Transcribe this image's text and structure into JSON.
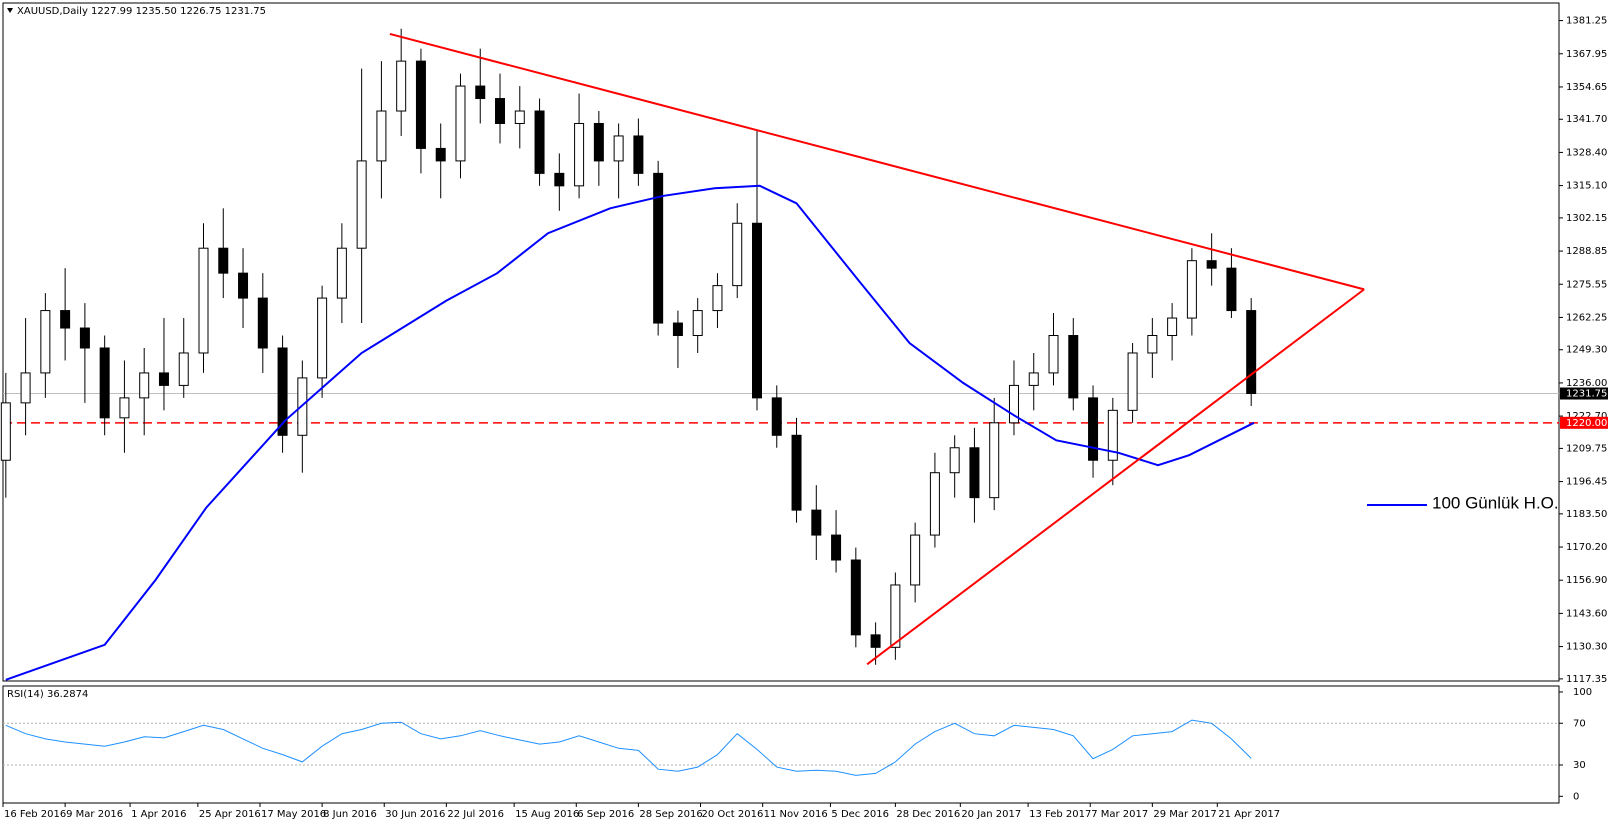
{
  "chart_data": {
    "type": "candlestick",
    "title": "XAUUSD,Daily  1227.99 1235.50 1226.75 1231.75",
    "x": [
      "2016-02-17",
      "2016-02-24",
      "2016-03-02",
      "2016-03-09",
      "2016-03-16",
      "2016-03-23",
      "2016-03-30",
      "2016-04-06",
      "2016-04-13",
      "2016-04-20",
      "2016-04-27",
      "2016-05-04",
      "2016-05-11",
      "2016-05-18",
      "2016-05-25",
      "2016-06-01",
      "2016-06-08",
      "2016-06-15",
      "2016-06-22",
      "2016-06-29",
      "2016-07-06",
      "2016-07-13",
      "2016-07-20",
      "2016-07-27",
      "2016-08-03",
      "2016-08-10",
      "2016-08-17",
      "2016-08-24",
      "2016-08-31",
      "2016-09-07",
      "2016-09-14",
      "2016-09-21",
      "2016-09-28",
      "2016-10-05",
      "2016-10-12",
      "2016-10-19",
      "2016-10-26",
      "2016-11-02",
      "2016-11-09",
      "2016-11-16",
      "2016-11-23",
      "2016-11-30",
      "2016-12-07",
      "2016-12-14",
      "2016-12-21",
      "2016-12-28",
      "2017-01-04",
      "2017-01-11",
      "2017-01-18",
      "2017-01-25",
      "2017-02-01",
      "2017-02-08",
      "2017-02-15",
      "2017-02-22",
      "2017-03-01",
      "2017-03-08",
      "2017-03-15",
      "2017-03-22",
      "2017-03-29",
      "2017-04-05",
      "2017-04-12",
      "2017-04-19",
      "2017-04-26",
      "2017-05-03"
    ],
    "open": [
      1205,
      1228,
      1240,
      1265,
      1258,
      1250,
      1222,
      1230,
      1240,
      1235,
      1248,
      1290,
      1280,
      1270,
      1250,
      1215,
      1238,
      1270,
      1290,
      1325,
      1345,
      1365,
      1330,
      1325,
      1355,
      1350,
      1340,
      1345,
      1320,
      1315,
      1340,
      1325,
      1335,
      1320,
      1260,
      1255,
      1265,
      1275,
      1300,
      1230,
      1215,
      1185,
      1175,
      1165,
      1135,
      1130,
      1155,
      1175,
      1200,
      1210,
      1190,
      1220,
      1235,
      1240,
      1255,
      1230,
      1205,
      1225,
      1248,
      1255,
      1262,
      1285,
      1282,
      1265
    ],
    "high": [
      1240,
      1262,
      1272,
      1282,
      1268,
      1255,
      1245,
      1250,
      1262,
      1262,
      1300,
      1306,
      1290,
      1280,
      1255,
      1245,
      1275,
      1300,
      1362,
      1365,
      1378,
      1370,
      1340,
      1360,
      1370,
      1360,
      1355,
      1350,
      1328,
      1352,
      1345,
      1340,
      1342,
      1325,
      1265,
      1270,
      1280,
      1308,
      1337,
      1235,
      1222,
      1195,
      1185,
      1170,
      1140,
      1160,
      1180,
      1208,
      1215,
      1218,
      1230,
      1245,
      1248,
      1264,
      1262,
      1235,
      1230,
      1252,
      1262,
      1268,
      1290,
      1296,
      1290,
      1270
    ],
    "low": [
      1190,
      1215,
      1230,
      1245,
      1228,
      1215,
      1208,
      1215,
      1225,
      1230,
      1240,
      1270,
      1258,
      1240,
      1208,
      1200,
      1230,
      1260,
      1260,
      1310,
      1335,
      1320,
      1310,
      1318,
      1340,
      1332,
      1330,
      1315,
      1305,
      1310,
      1315,
      1310,
      1315,
      1255,
      1242,
      1248,
      1258,
      1270,
      1225,
      1210,
      1180,
      1165,
      1160,
      1130,
      1123,
      1125,
      1148,
      1170,
      1190,
      1180,
      1185,
      1215,
      1225,
      1235,
      1225,
      1198,
      1195,
      1220,
      1238,
      1245,
      1255,
      1275,
      1262,
      1226.75
    ],
    "close": [
      1228,
      1240,
      1265,
      1258,
      1250,
      1222,
      1230,
      1240,
      1235,
      1248,
      1290,
      1280,
      1270,
      1250,
      1215,
      1238,
      1270,
      1290,
      1325,
      1345,
      1365,
      1330,
      1325,
      1355,
      1350,
      1340,
      1345,
      1320,
      1315,
      1340,
      1325,
      1335,
      1320,
      1260,
      1255,
      1265,
      1275,
      1300,
      1230,
      1215,
      1185,
      1175,
      1165,
      1135,
      1130,
      1155,
      1175,
      1200,
      1210,
      1190,
      1220,
      1235,
      1240,
      1255,
      1230,
      1205,
      1225,
      1248,
      1255,
      1262,
      1285,
      1282,
      1265,
      1231.75
    ],
    "up_color": "#ffffff",
    "down_color": "#000000",
    "xlim": [
      "2016-02-16",
      "2017-08-20"
    ],
    "xticks": [
      {
        "value": "2016-02-16",
        "label": "16 Feb 2016"
      },
      {
        "value": "2016-03-09",
        "label": "9 Mar 2016"
      },
      {
        "value": "2016-04-01",
        "label": "1 Apr 2016"
      },
      {
        "value": "2016-04-25",
        "label": "25 Apr 2016"
      },
      {
        "value": "2016-05-17",
        "label": "17 May 2016"
      },
      {
        "value": "2016-06-08",
        "label": "8 Jun 2016"
      },
      {
        "value": "2016-06-30",
        "label": "30 Jun 2016"
      },
      {
        "value": "2016-07-22",
        "label": "22 Jul 2016"
      },
      {
        "value": "2016-08-15",
        "label": "15 Aug 2016"
      },
      {
        "value": "2016-09-06",
        "label": "6 Sep 2016"
      },
      {
        "value": "2016-09-28",
        "label": "28 Sep 2016"
      },
      {
        "value": "2016-10-20",
        "label": "20 Oct 2016"
      },
      {
        "value": "2016-11-11",
        "label": "11 Nov 2016"
      },
      {
        "value": "2016-12-05",
        "label": "5 Dec 2016"
      },
      {
        "value": "2016-12-28",
        "label": "28 Dec 2016"
      },
      {
        "value": "2017-01-20",
        "label": "20 Jan 2017"
      },
      {
        "value": "2017-02-13",
        "label": "13 Feb 2017"
      },
      {
        "value": "2017-03-07",
        "label": "7 Mar 2017"
      },
      {
        "value": "2017-03-29",
        "label": "29 Mar 2017"
      },
      {
        "value": "2017-04-21",
        "label": "21 Apr 2017"
      }
    ],
    "ylim": [
      1116.5,
      1388.3
    ],
    "yticks": [
      1381.25,
      1367.95,
      1354.65,
      {
        "value": 1341.7,
        "label": "1341.70"
      },
      {
        "value": 1328.4,
        "label": "1328.40"
      },
      {
        "value": 1315.1,
        "label": "1315.10"
      },
      1302.15,
      1288.85,
      1275.55,
      1262.25,
      {
        "value": 1249.3,
        "label": "1249.30"
      },
      {
        "value": 1236,
        "label": "1236.00"
      },
      {
        "value": 1222.7,
        "label": "1222.70"
      },
      1209.75,
      1196.45,
      {
        "value": 1183.5,
        "label": "1183.50"
      },
      {
        "value": 1170.2,
        "label": "1170.20"
      },
      {
        "value": 1156.9,
        "label": "1156.90"
      },
      {
        "value": 1143.6,
        "label": "1143.60"
      },
      {
        "value": 1130.3,
        "label": "1130.30"
      },
      1117.35
    ],
    "moving_average": {
      "name": "100 Günlük H.O.",
      "color": "#0000ff",
      "x": [
        "2016-02-17",
        "2016-03-23",
        "2016-04-10",
        "2016-04-28",
        "2016-05-26",
        "2016-06-22",
        "2016-07-22",
        "2016-08-09",
        "2016-08-27",
        "2016-09-18",
        "2016-10-07",
        "2016-10-25",
        "2016-11-10",
        "2016-11-23",
        "2016-12-15",
        "2017-01-02",
        "2017-01-21",
        "2017-02-08",
        "2017-02-23",
        "2017-03-17",
        "2017-03-31",
        "2017-04-11",
        "2017-05-04"
      ],
      "values": [
        1117,
        1131,
        1157,
        1186,
        1221,
        1248,
        1269,
        1280,
        1296,
        1306,
        1311,
        1314,
        1315,
        1308,
        1277,
        1252,
        1236,
        1223,
        1213,
        1208,
        1203,
        1207,
        1220
      ]
    },
    "trendlines": [
      {
        "color": "#ff0000",
        "x": [
          "2016-07-02",
          "2017-06-12"
        ],
        "y": [
          1375.9,
          1273.5
        ]
      },
      {
        "color": "#ff0000",
        "x": [
          "2016-12-18",
          "2017-06-12"
        ],
        "y": [
          1123.2,
          1273.5
        ]
      }
    ],
    "levels": [
      {
        "value": 1231.75,
        "color": "#c0c0c0",
        "box_color": "#000000",
        "style": "solid"
      },
      {
        "value": 1220,
        "label": "1220.00",
        "color": "#ff0000",
        "box_color": "#ff0000",
        "style": "dashed"
      }
    ],
    "rsi": {
      "title": "RSI(14) 36.2874",
      "color": "#1e90ff",
      "values": [
        68,
        60,
        55,
        52,
        50,
        48,
        52,
        57,
        56,
        62,
        68,
        64,
        55,
        46,
        40,
        33,
        48,
        60,
        64,
        70,
        71,
        60,
        55,
        58,
        63,
        58,
        54,
        50,
        52,
        58,
        52,
        46,
        44,
        26,
        24,
        28,
        40,
        60,
        45,
        28,
        24,
        25,
        24,
        20,
        22,
        33,
        50,
        62,
        70,
        60,
        58,
        68,
        66,
        64,
        58,
        36,
        45,
        58,
        60,
        62,
        73,
        70,
        55,
        36.2874
      ],
      "ylim": [
        -6.4,
        105.7
      ],
      "yticks": [
        100,
        70,
        30,
        0
      ],
      "levels": [
        70,
        30
      ]
    }
  }
}
